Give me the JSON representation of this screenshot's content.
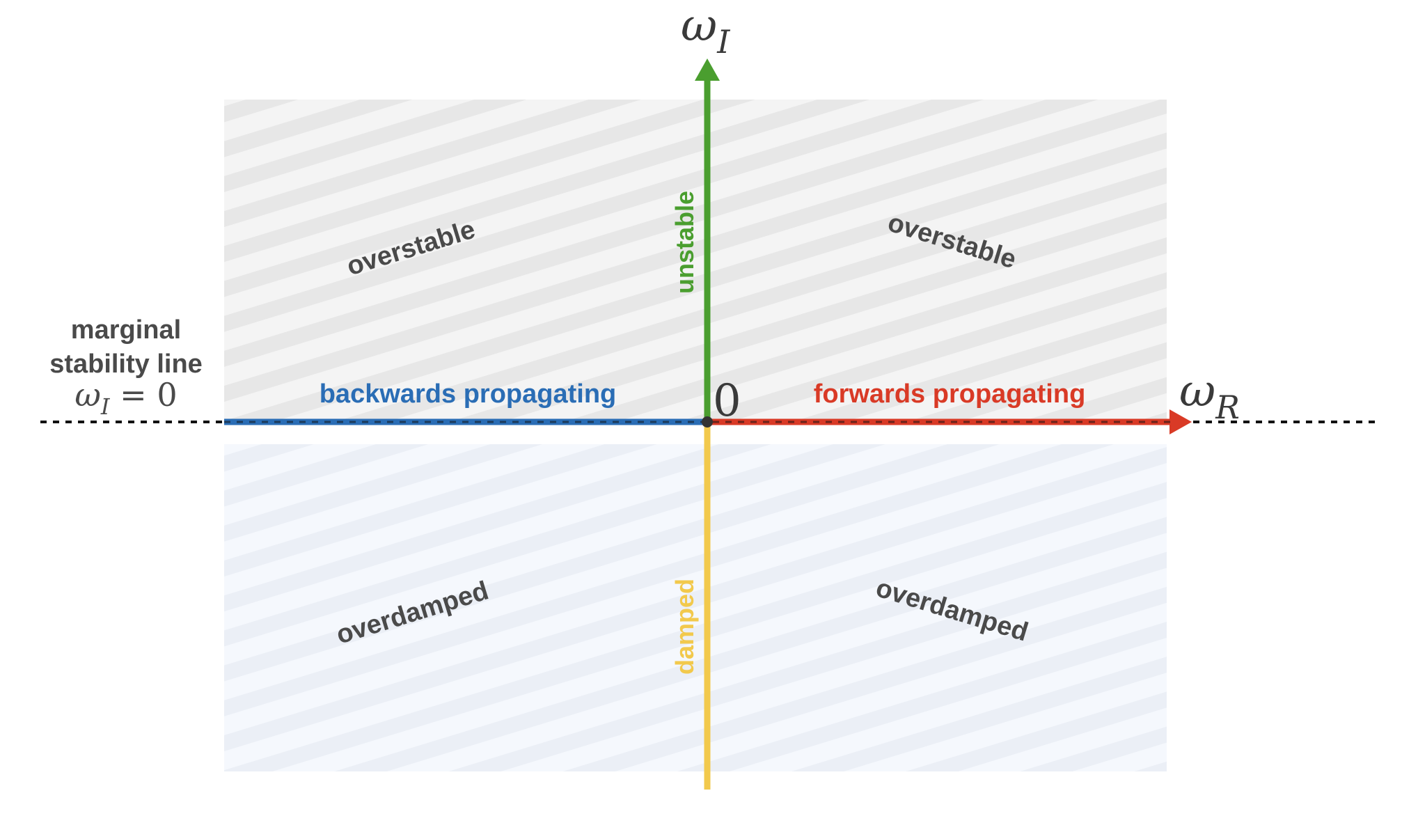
{
  "axes": {
    "vertical_label": "ω",
    "vertical_subscript": "I",
    "horizontal_label": "ω",
    "horizontal_subscript": "R",
    "origin_label": "0"
  },
  "marginal_stability": {
    "line1": "marginal",
    "line2": "stability line",
    "eq_symbol": "ω",
    "eq_subscript": "I",
    "eq_rest": " = 0"
  },
  "regions": {
    "upper_left": "overstable",
    "upper_right": "overstable",
    "lower_left": "overdamped",
    "lower_right": "overdamped"
  },
  "axis_segments": {
    "positive_imaginary": "unstable",
    "negative_imaginary": "damped",
    "negative_real": "backwards propagating",
    "positive_real": "forwards propagating"
  },
  "colors": {
    "unstable": "#4a9e2f",
    "damped": "#f2c94c",
    "backwards": "#2a6db5",
    "forwards": "#d93a26",
    "upper_fill": "#f2f2f2",
    "upper_stripe": "#e6e6e6",
    "lower_fill": "#f3f7fd",
    "lower_stripe": "#e9eef6",
    "text_gray": "#4a4a4a"
  }
}
